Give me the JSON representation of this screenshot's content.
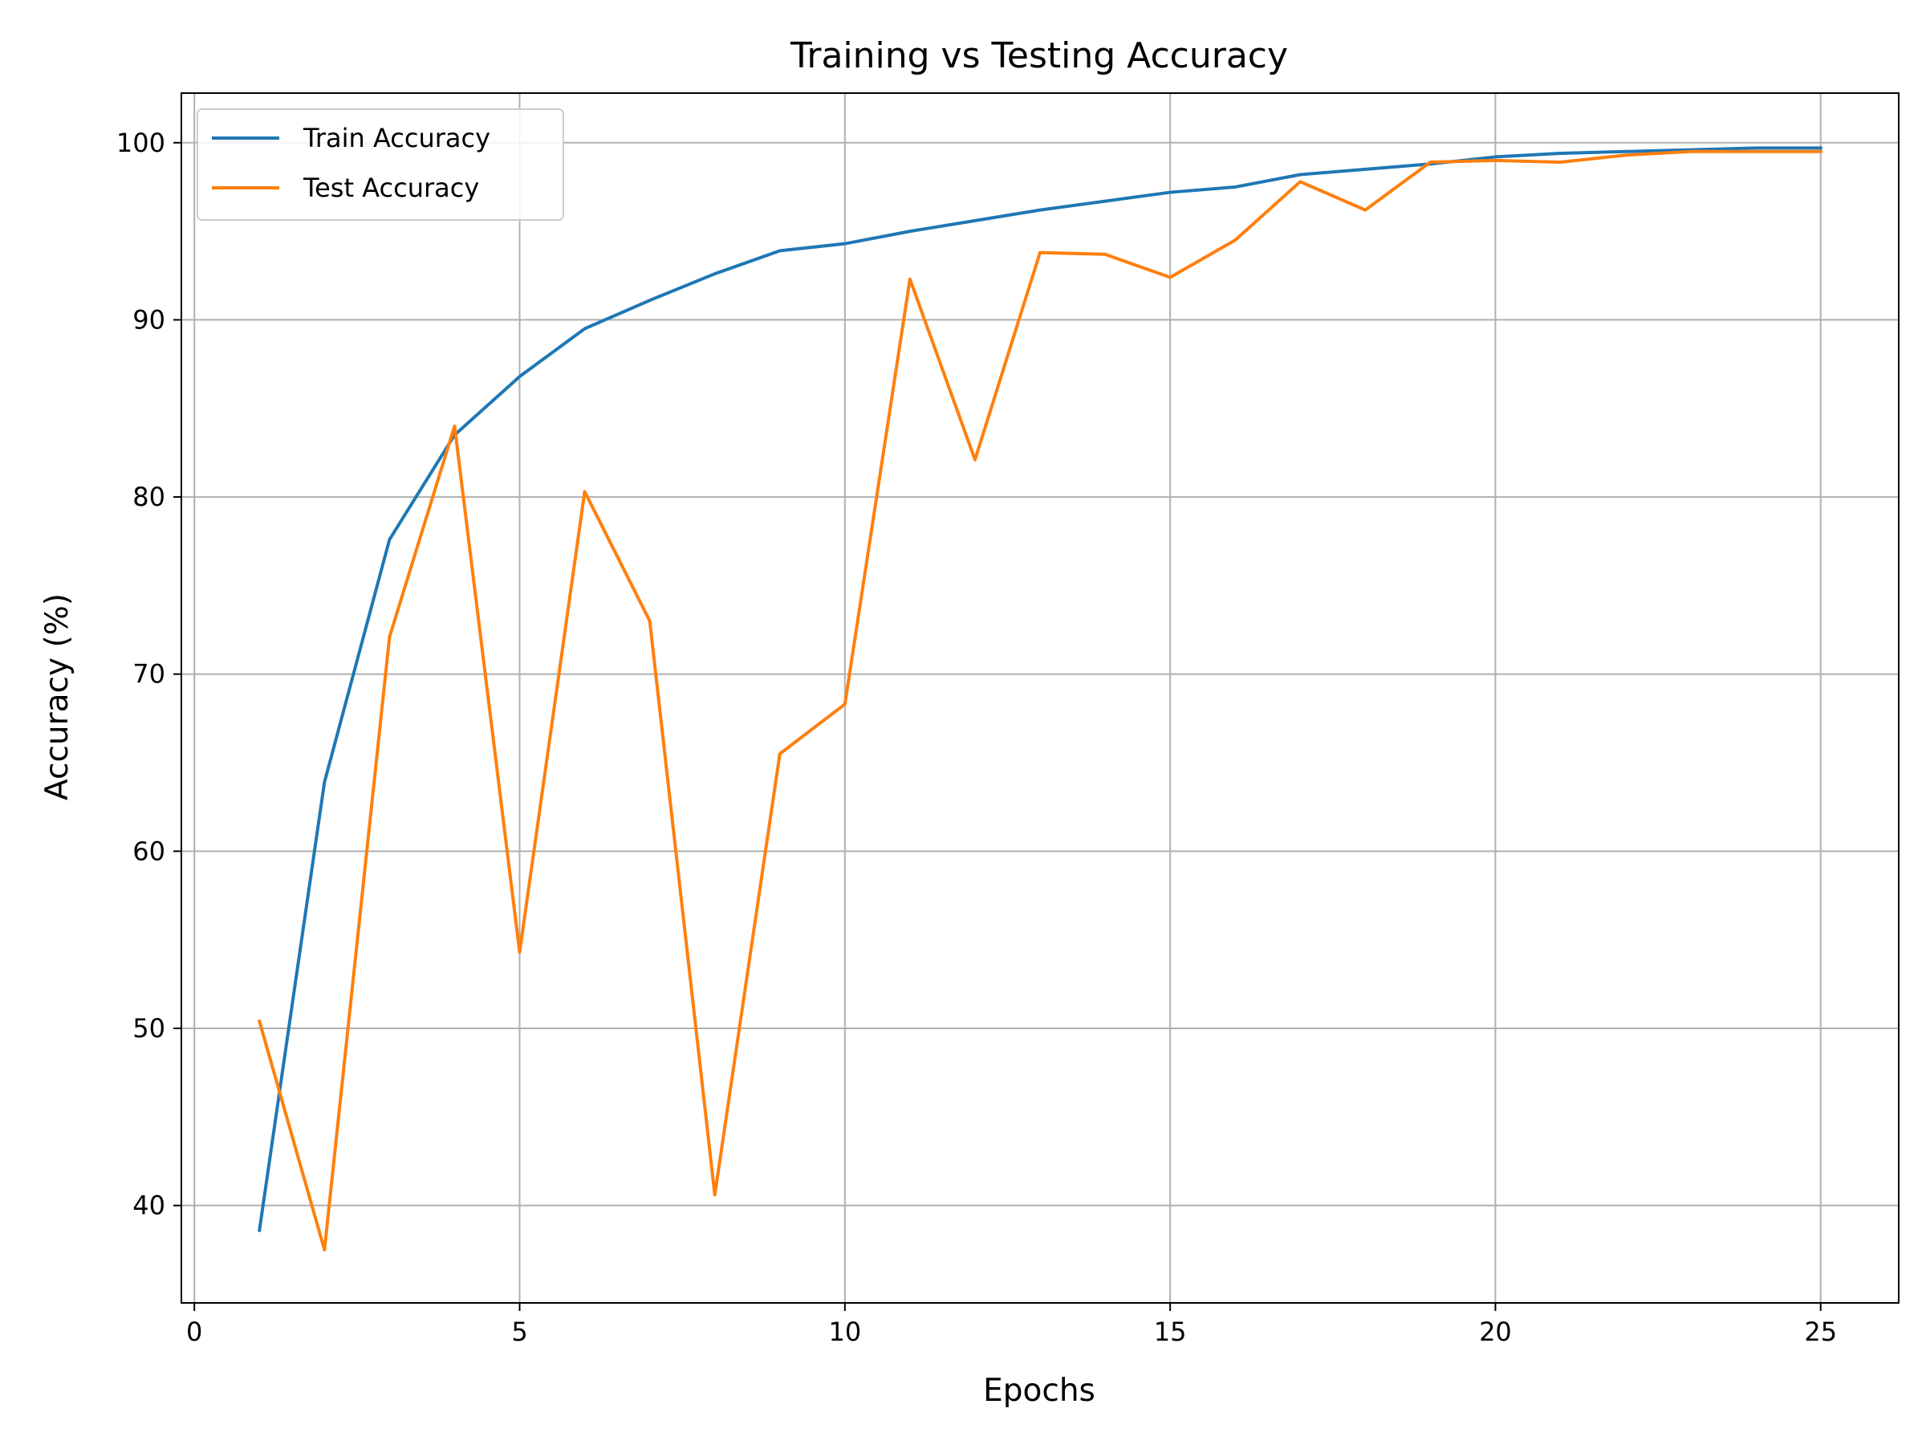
{
  "chart_data": {
    "type": "line",
    "title": "Training vs Testing Accuracy",
    "xlabel": "Epochs",
    "ylabel": "Accuracy (%)",
    "xlim": [
      -0.2,
      26.2
    ],
    "ylim": [
      34.5,
      102.8
    ],
    "xticks": [
      0,
      5,
      10,
      15,
      20,
      25
    ],
    "yticks": [
      40,
      50,
      60,
      70,
      80,
      90,
      100
    ],
    "grid": true,
    "legend_position": "upper-left",
    "x": [
      1,
      2,
      3,
      4,
      5,
      6,
      7,
      8,
      9,
      10,
      11,
      12,
      13,
      14,
      15,
      16,
      17,
      18,
      19,
      20,
      21,
      22,
      23,
      24,
      25
    ],
    "series": [
      {
        "name": "Train Accuracy",
        "color": "#1f77b4",
        "values": [
          38.6,
          63.9,
          77.6,
          83.5,
          86.8,
          89.5,
          91.1,
          92.6,
          93.9,
          94.3,
          95.0,
          95.6,
          96.2,
          96.7,
          97.2,
          97.5,
          98.2,
          98.5,
          98.8,
          99.2,
          99.4,
          99.5,
          99.6,
          99.7,
          99.7
        ]
      },
      {
        "name": "Test Accuracy",
        "color": "#ff7f0e",
        "values": [
          50.4,
          37.5,
          72.1,
          84.0,
          54.3,
          80.3,
          73.0,
          40.6,
          65.5,
          68.3,
          92.3,
          82.1,
          93.8,
          93.7,
          92.4,
          94.5,
          97.8,
          96.2,
          98.9,
          99.0,
          98.9,
          99.3,
          99.5,
          99.5,
          99.5
        ]
      }
    ]
  }
}
